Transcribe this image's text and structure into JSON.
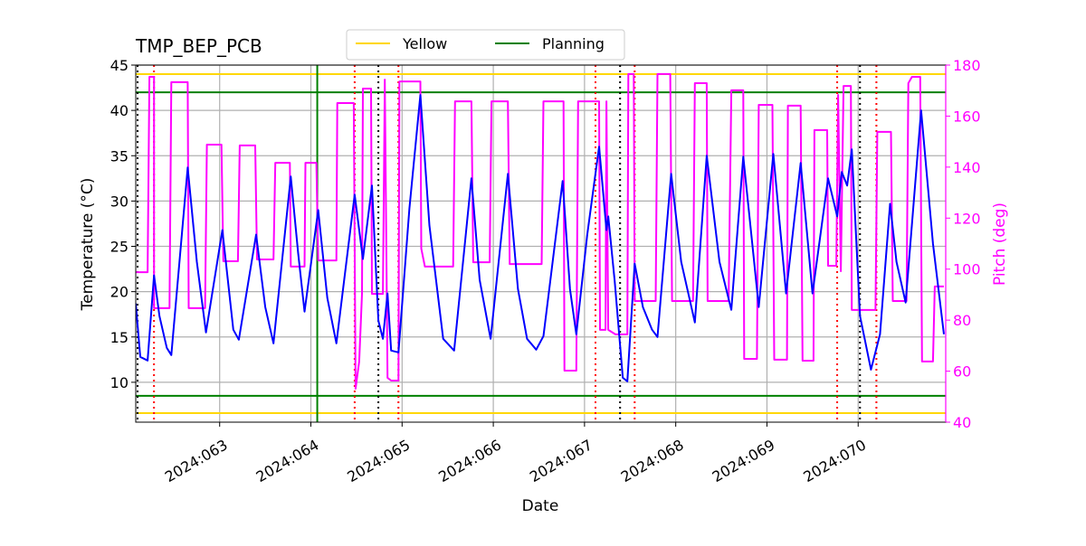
{
  "chart_data": {
    "type": "line",
    "title": "TMP_BEP_PCB",
    "xlabel": "Date",
    "ylabel": "Temperature (°C)",
    "y2label": "Pitch (deg)",
    "xlim": [
      62.08,
      70.96
    ],
    "xticks": [
      {
        "value": 63,
        "label": "2024:063"
      },
      {
        "value": 64,
        "label": "2024:064"
      },
      {
        "value": 65,
        "label": "2024:065"
      },
      {
        "value": 66,
        "label": "2024:066"
      },
      {
        "value": 67,
        "label": "2024:067"
      },
      {
        "value": 68,
        "label": "2024:068"
      },
      {
        "value": 69,
        "label": "2024:069"
      },
      {
        "value": 70,
        "label": "2024:070"
      }
    ],
    "ylim": [
      5.6,
      45
    ],
    "yticks": [
      10,
      15,
      20,
      25,
      30,
      35,
      40,
      45
    ],
    "y2lim": [
      40,
      180
    ],
    "y2ticks": [
      40,
      60,
      80,
      100,
      120,
      140,
      160,
      180
    ],
    "y2color": "#ff00ff",
    "grid": true,
    "legend": "upper center",
    "series": [
      {
        "color": "#0000ff",
        "axis": "y",
        "x": [
          62.08,
          62.13,
          62.21,
          62.28,
          62.34,
          62.42,
          62.47,
          62.65,
          62.75,
          62.85,
          63.03,
          63.15,
          63.21,
          63.4,
          63.5,
          63.59,
          63.78,
          63.86,
          63.93,
          64.08,
          64.18,
          64.28,
          64.48,
          64.57,
          64.67,
          64.74,
          64.79,
          64.84,
          64.88,
          64.96,
          65.08,
          65.2,
          65.3,
          65.45,
          65.57,
          65.76,
          65.85,
          65.97,
          66.16,
          66.27,
          66.37,
          66.47,
          66.55,
          66.76,
          66.84,
          66.91,
          67.03,
          67.16,
          67.24,
          67.26,
          67.33,
          67.42,
          67.47,
          67.55,
          67.64,
          67.74,
          67.8,
          67.95,
          68.06,
          68.21,
          68.34,
          68.48,
          68.61,
          68.74,
          68.86,
          68.91,
          69.07,
          69.21,
          69.37,
          69.5,
          69.67,
          69.77,
          69.82,
          69.88,
          69.93,
          70.02,
          70.14,
          70.24,
          70.35,
          70.42,
          70.52,
          70.69,
          70.82,
          70.94
        ],
        "values": [
          18.7,
          12.8,
          12.4,
          21.8,
          17.3,
          13.8,
          13.0,
          33.7,
          23.3,
          15.5,
          26.8,
          15.8,
          14.7,
          26.3,
          18.3,
          14.3,
          32.7,
          24.3,
          17.8,
          29.0,
          19.3,
          14.3,
          30.7,
          23.6,
          31.7,
          16.8,
          14.8,
          19.8,
          13.5,
          13.3,
          29.2,
          41.7,
          27.3,
          14.8,
          13.5,
          32.5,
          21.3,
          14.8,
          33.0,
          20.3,
          14.8,
          13.6,
          15.1,
          32.2,
          20.3,
          15.3,
          26.3,
          36.0,
          26.8,
          28.3,
          21.3,
          10.5,
          10.1,
          23.1,
          18.3,
          15.8,
          15.0,
          33.0,
          23.3,
          16.6,
          35.0,
          23.3,
          18.0,
          34.9,
          23.3,
          18.3,
          35.2,
          19.8,
          34.2,
          19.8,
          32.5,
          28.3,
          33.2,
          31.7,
          35.7,
          17.3,
          11.4,
          15.3,
          29.7,
          23.3,
          18.8,
          40.0,
          25.3,
          15.3
        ]
      },
      {
        "color": "#ff00ff",
        "axis": "y2",
        "x": [
          62.08,
          62.21,
          62.23,
          62.28,
          62.28,
          62.45,
          62.47,
          62.65,
          62.66,
          62.84,
          62.86,
          63.02,
          63.04,
          63.2,
          63.22,
          63.39,
          63.41,
          63.59,
          63.61,
          63.77,
          63.78,
          63.93,
          63.94,
          64.06,
          64.08,
          64.28,
          64.29,
          64.47,
          64.49,
          64.53,
          64.56,
          64.57,
          64.66,
          64.67,
          64.79,
          64.81,
          64.84,
          64.88,
          64.96,
          64.97,
          65.2,
          65.21,
          65.25,
          65.56,
          65.58,
          65.76,
          65.78,
          65.96,
          65.98,
          66.16,
          66.18,
          66.53,
          66.55,
          66.77,
          66.78,
          66.91,
          66.93,
          67.16,
          67.17,
          67.23,
          67.24,
          67.26,
          67.34,
          67.47,
          67.48,
          67.54,
          67.55,
          67.78,
          67.8,
          67.94,
          67.96,
          68.19,
          68.21,
          68.34,
          68.35,
          68.58,
          68.61,
          68.74,
          68.75,
          68.89,
          68.91,
          69.06,
          69.08,
          69.22,
          69.23,
          69.37,
          69.39,
          69.51,
          69.52,
          69.66,
          69.67,
          69.76,
          69.78,
          69.81,
          69.84,
          69.92,
          69.93,
          70.19,
          70.21,
          70.36,
          70.38,
          70.53,
          70.55,
          70.59,
          70.68,
          70.7,
          70.82,
          70.84,
          70.94
        ],
        "values": [
          98.8,
          98.8,
          175.4,
          175.4,
          84.7,
          84.7,
          173.3,
          173.3,
          84.7,
          84.7,
          148.8,
          148.8,
          103.1,
          103.1,
          148.5,
          148.5,
          103.8,
          103.8,
          141.7,
          141.7,
          101.0,
          101.0,
          141.7,
          141.7,
          103.4,
          103.4,
          165.1,
          165.1,
          53.1,
          63.8,
          90.3,
          170.8,
          170.8,
          90.3,
          90.3,
          174.3,
          57.4,
          56.3,
          56.3,
          173.6,
          173.6,
          108.1,
          101.0,
          101.0,
          165.8,
          165.8,
          102.7,
          102.7,
          165.8,
          165.8,
          102.0,
          102.0,
          165.8,
          165.8,
          60.2,
          60.2,
          165.8,
          165.8,
          76.2,
          76.2,
          165.8,
          76.2,
          74.4,
          74.4,
          176.5,
          176.5,
          87.5,
          87.5,
          176.5,
          176.5,
          87.5,
          87.5,
          172.9,
          172.9,
          87.5,
          87.5,
          170.1,
          170.1,
          64.8,
          64.8,
          164.4,
          164.4,
          64.5,
          64.5,
          164.1,
          164.1,
          64.1,
          64.1,
          154.5,
          154.5,
          101.3,
          101.3,
          168.3,
          99.2,
          171.8,
          171.8,
          84.0,
          84.0,
          153.8,
          153.8,
          87.5,
          87.5,
          172.9,
          175.4,
          175.4,
          63.8,
          63.8,
          93.2,
          93.2
        ]
      }
    ],
    "limit_lines": [
      {
        "name": "Yellow",
        "color": "#ffd700",
        "values": [
          6.6,
          44
        ]
      },
      {
        "name": "Planning",
        "color": "#008000",
        "values": [
          8.5,
          42
        ]
      }
    ],
    "vlines": [
      {
        "color": "#008000",
        "dash": "solid",
        "x": [
          64.07
        ]
      },
      {
        "color": "#000000",
        "dash": "dotted",
        "x": [
          62.1,
          64.74,
          67.39,
          70.02
        ]
      },
      {
        "color": "#ff0000",
        "dash": "dotted",
        "x": [
          62.28,
          64.48,
          64.96,
          67.12,
          67.55,
          69.77,
          70.2
        ]
      }
    ]
  }
}
